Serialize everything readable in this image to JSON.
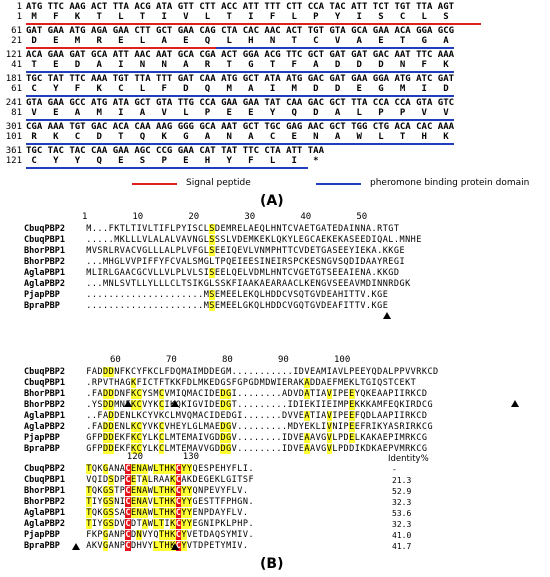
{
  "panel_a": {
    "label": "(A)",
    "rows": [
      {
        "nt_num": "1",
        "nt": "ATG TTC AAG ACT TTA ACG ATA GTT CTT ACC ATT TTT CTT CCA TAC ATT TCT TGT TTA AGT",
        "aa_num": "1",
        "aa": " M   F   K   T   L   T   I   V   L   T   I   F   L   P   Y   I   S   C   L   S"
      },
      {
        "nt_num": "61",
        "nt": "GAT GAA ATG AGA GAA CTT GCT GAA CAG CTA CAC AAC ACT TGT GTA GCA GAA ACA GGA GCG",
        "aa_num": "21",
        "aa": " D   E   M   R   E   L   A   E   Q   L   H   N   T   C   V   A   E   T   G   A"
      },
      {
        "nt_num": "121",
        "nt": "ACA GAA GAT GCA ATT AAC AAT GCA CGA ACT GGA ACG TTC GCT GAT GAT GAC AAT TTC AAA",
        "aa_num": "41",
        "aa": " T   E   D   A   I   N   N   A   R   T   G   T   F   A   D   D   D   N   F   K"
      },
      {
        "nt_num": "181",
        "nt": "TGC TAT TTC AAA TGT TTA TTT GAT CAA ATG GCT ATA ATG GAC GAT GAA GGA ATG ATC GAT",
        "aa_num": "61",
        "aa": " C   Y   F   K   C   L   F   D   Q   M   A   I   M   D   D   E   G   M   I   D"
      },
      {
        "nt_num": "241",
        "nt": "GTA GAA GCC ATG ATA GCT GTA TTG CCA GAA GAA TAT CAA GAC GCT TTA CCA CCA GTA GTC",
        "aa_num": "81",
        "aa": " V   E   A   M   I   A   V   L   P   E   E   Y   Q   D   A   L   P   P   V   V"
      },
      {
        "nt_num": "301",
        "nt": "CGA AAA TGT GAC ACA CAA AAG GGG GCA AAT GCT TGC GAG AAC GCT TGG CTG ACA CAC AAA",
        "aa_num": "101",
        "aa": " R   K   C   D   T   Q   K   G   A   N   A   C   E   N   A   W   L   T   H   K"
      },
      {
        "nt_num": "361",
        "nt": "TGC TAC TAC CAA GAA AGC CCG GAA CAT TAT TTC CTA ATT TAA",
        "aa_num": "121",
        "aa": " C   Y   Y   Q   E   S   P   E   H   Y   F   L   I   *"
      }
    ],
    "legend": {
      "signal_label": "Signal peptide",
      "signal_color": "#e02020",
      "domain_label": "pheromone binding protein domain",
      "domain_color": "#1f3fbf"
    }
  },
  "panel_b": {
    "label": "(B)",
    "block1": {
      "ruler": [
        {
          "n": "1",
          "col": 1
        },
        {
          "n": "10",
          "col": 10
        },
        {
          "n": "20",
          "col": 20
        },
        {
          "n": "30",
          "col": 30
        },
        {
          "n": "40",
          "col": 40
        },
        {
          "n": "50",
          "col": 50
        }
      ],
      "rows": [
        {
          "name": "CbuqPBP2",
          "seq": "M...FKTLTIVLTIFLPYISCLSDEMRELAEQLHNTCVAETGATEDAINNA.RTGT"
        },
        {
          "name": "CbuqPBP1",
          "seq": ".....MKLLLVLALALVAVNGLSSSLVDEMKEKLQKYLEGCAEKEKASEEDIQAL.MNHE"
        },
        {
          "name": "BhorPBP1",
          "seq": "MVSRLRVACVGLLLALPLVFGLSEEIQEVLVNMPHTTCVDETGASEEYIEKA.KKGE"
        },
        {
          "name": "BhorPBP2",
          "seq": "...MHGLVVPIFFYFCVALSMGLTPQEIEESINEIRSPCKESNGVSQDIDAAYREGI"
        },
        {
          "name": "AglaPBP1",
          "seq": "MLIRLGAACGCVLLVLPLVLSISEELQELVDMLHNTCVGETGTSEEAIENA.KKGD"
        },
        {
          "name": "AglaPBP2",
          "seq": "...MNLSVTLLYLLLCLTSIKGLSSKFIAAKAEARAACLKENGVSEEAVMDINNRDGK"
        },
        {
          "name": "PjapPBP",
          "seq": ".....................MSEMEELEKQLHDDCVSQTGVDEAHITTV.KGE"
        },
        {
          "name": "BpraPBP",
          "seq": ".....................MSEMEELGKQLHDDCVGQTGVDEAFITTV.KGE"
        }
      ]
    },
    "block2": {
      "ruler": [
        {
          "n": "60",
          "col": 60
        },
        {
          "n": "70",
          "col": 70
        },
        {
          "n": "80",
          "col": 80
        },
        {
          "n": "90",
          "col": 90
        },
        {
          "n": "100",
          "col": 100
        }
      ],
      "rows": [
        {
          "name": "CbuqPBP2",
          "seq": "FADDDNFKCYFKCLFDQMAIMDDEGM...........IDVEAMIAVLPEEYQDALPPVVRKCD"
        },
        {
          "name": "CbuqPBP1",
          "seq": ".RPVTHAGKFICTFTKKFDLMKEDGSFGPGDMDWIERAKADDAEFMEKLTGIQSTCEKT"
        },
        {
          "name": "BhorPBP1",
          "seq": ".FADDDNFKCYSMCVMIQMACIDEDGI........ADVDATIAVIPEEYQKEAAPIIRKCD"
        },
        {
          "name": "BhorPBP2",
          "seq": ".YSDDMNFKCVYKCIKQKIGVIDEDGT.........IDIEKIIEIMPEKKKAMFEQKIRDCG"
        },
        {
          "name": "AglaPBP1",
          "seq": "..FADDENLKCYVKCLMVQMACIDEDGI.......DVVEATIAVIPEEFQDLAAPIIRKCD"
        },
        {
          "name": "AglaPBP2",
          "seq": ".FADDENLKCYVKCVHEYLGLMAEDGV.........MDYEKLIVNIPEEFRIKYASRIRKCG"
        },
        {
          "name": "PjapPBP",
          "seq": "GFPDDEKFKCYLKCLMTEMAIVGDDGV........IDVEAAVGVLPDELKAKAEPIMRKCG"
        },
        {
          "name": "BpraPBP",
          "seq": "GFPDDEKFKCYLKCLMTEMAVVGDDGV........IDVEAAVGVLPDDIKDKAEPVMRKCG"
        }
      ]
    },
    "block3": {
      "ruler": [
        {
          "n": "120",
          "col": 120
        },
        {
          "n": "130",
          "col": 130
        }
      ],
      "identity_header": "Identity%",
      "rows": [
        {
          "name": "CbuqPBP2",
          "seq": "TQKGANACENAWLTHKCYYQESPEHYFLI.",
          "ident": "-"
        },
        {
          "name": "CbuqPBP1",
          "seq": "VQIDSDPCETALRAAKCAKDEGEKLGITSF",
          "ident": "21.3"
        },
        {
          "name": "BhorPBP1",
          "seq": "TQKGSTPCENAWLTHKCYYQNPEVYFLV.",
          "ident": "52.9"
        },
        {
          "name": "BhorPBP2",
          "seq": "TIYGSNICENAVLTHKCYYGESTTFPHGN.",
          "ident": "32.3"
        },
        {
          "name": "AglaPBP1",
          "seq": "TQKGSSACENAWLTHKCYYENPDAYFLV.",
          "ident": "53.6"
        },
        {
          "name": "AglaPBP2",
          "seq": "TIYGSDVCDTAWLTIKCYYEGNIPKLPHP.",
          "ident": "32.3"
        },
        {
          "name": "PjapPBP",
          "seq": "FKPGANPCDNVYQTHKCYVETDAQSYMIV.",
          "ident": "41.0"
        },
        {
          "name": "BpraPBP",
          "seq": "AKVGANPCDHVYLTHKCYVTDPETYMIV.",
          "ident": "41.7"
        }
      ]
    }
  }
}
